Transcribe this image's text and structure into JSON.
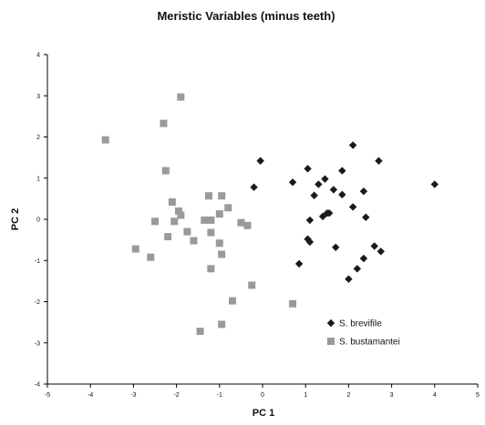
{
  "chart_data": {
    "type": "scatter",
    "title": "Meristic Variables (minus teeth)",
    "xlabel": "PC 1",
    "ylabel": "PC 2",
    "xlim": [
      -5,
      5
    ],
    "ylim": [
      -4,
      4
    ],
    "xticks": [
      "-5",
      "-4",
      "-3",
      "-2",
      "-1",
      "0",
      "1",
      "2",
      "3",
      "4",
      "5"
    ],
    "yticks": [
      "4",
      "3",
      "2",
      "1",
      "0",
      "-1",
      "-2",
      "-3",
      "-4"
    ],
    "grid": false,
    "legend_position": "bottom-right",
    "series": [
      {
        "name": "S. brevifile",
        "marker": "diamond",
        "color": "#1a1a1a",
        "points": [
          [
            -0.2,
            0.78
          ],
          [
            -0.05,
            1.42
          ],
          [
            0.7,
            0.9
          ],
          [
            1.05,
            1.23
          ],
          [
            1.3,
            0.85
          ],
          [
            1.45,
            0.98
          ],
          [
            1.65,
            0.72
          ],
          [
            1.85,
            1.18
          ],
          [
            1.85,
            0.6
          ],
          [
            2.1,
            1.8
          ],
          [
            2.1,
            0.3
          ],
          [
            2.35,
            0.68
          ],
          [
            2.7,
            1.42
          ],
          [
            4.0,
            0.85
          ],
          [
            1.2,
            0.58
          ],
          [
            1.5,
            0.15
          ],
          [
            1.4,
            0.07
          ],
          [
            1.1,
            -0.02
          ],
          [
            1.55,
            0.15
          ],
          [
            2.4,
            0.05
          ],
          [
            1.05,
            -0.48
          ],
          [
            1.1,
            -0.55
          ],
          [
            1.7,
            -0.68
          ],
          [
            2.6,
            -0.65
          ],
          [
            2.75,
            -0.78
          ],
          [
            2.35,
            -0.95
          ],
          [
            0.85,
            -1.08
          ],
          [
            2.2,
            -1.2
          ],
          [
            2.0,
            -1.45
          ]
        ]
      },
      {
        "name": "S. bustamantei",
        "marker": "square",
        "color": "#9a9a9a",
        "points": [
          [
            -3.65,
            1.93
          ],
          [
            -1.9,
            2.97
          ],
          [
            -2.3,
            2.33
          ],
          [
            -2.25,
            1.18
          ],
          [
            -2.1,
            0.42
          ],
          [
            -1.95,
            0.2
          ],
          [
            -1.25,
            0.57
          ],
          [
            -0.95,
            0.57
          ],
          [
            -0.8,
            0.28
          ],
          [
            -1.0,
            0.13
          ],
          [
            -2.5,
            -0.05
          ],
          [
            -2.05,
            -0.05
          ],
          [
            -1.9,
            0.1
          ],
          [
            -1.35,
            -0.02
          ],
          [
            -1.2,
            -0.02
          ],
          [
            -1.75,
            -0.3
          ],
          [
            -1.2,
            -0.32
          ],
          [
            -0.5,
            -0.08
          ],
          [
            -0.35,
            -0.15
          ],
          [
            -2.2,
            -0.42
          ],
          [
            -1.6,
            -0.52
          ],
          [
            -1.0,
            -0.58
          ],
          [
            -2.95,
            -0.72
          ],
          [
            -2.6,
            -0.92
          ],
          [
            -0.95,
            -0.85
          ],
          [
            -1.2,
            -1.2
          ],
          [
            -0.25,
            -1.6
          ],
          [
            -0.7,
            -1.98
          ],
          [
            0.7,
            -2.05
          ],
          [
            -0.95,
            -2.55
          ],
          [
            -1.45,
            -2.72
          ]
        ]
      }
    ]
  }
}
